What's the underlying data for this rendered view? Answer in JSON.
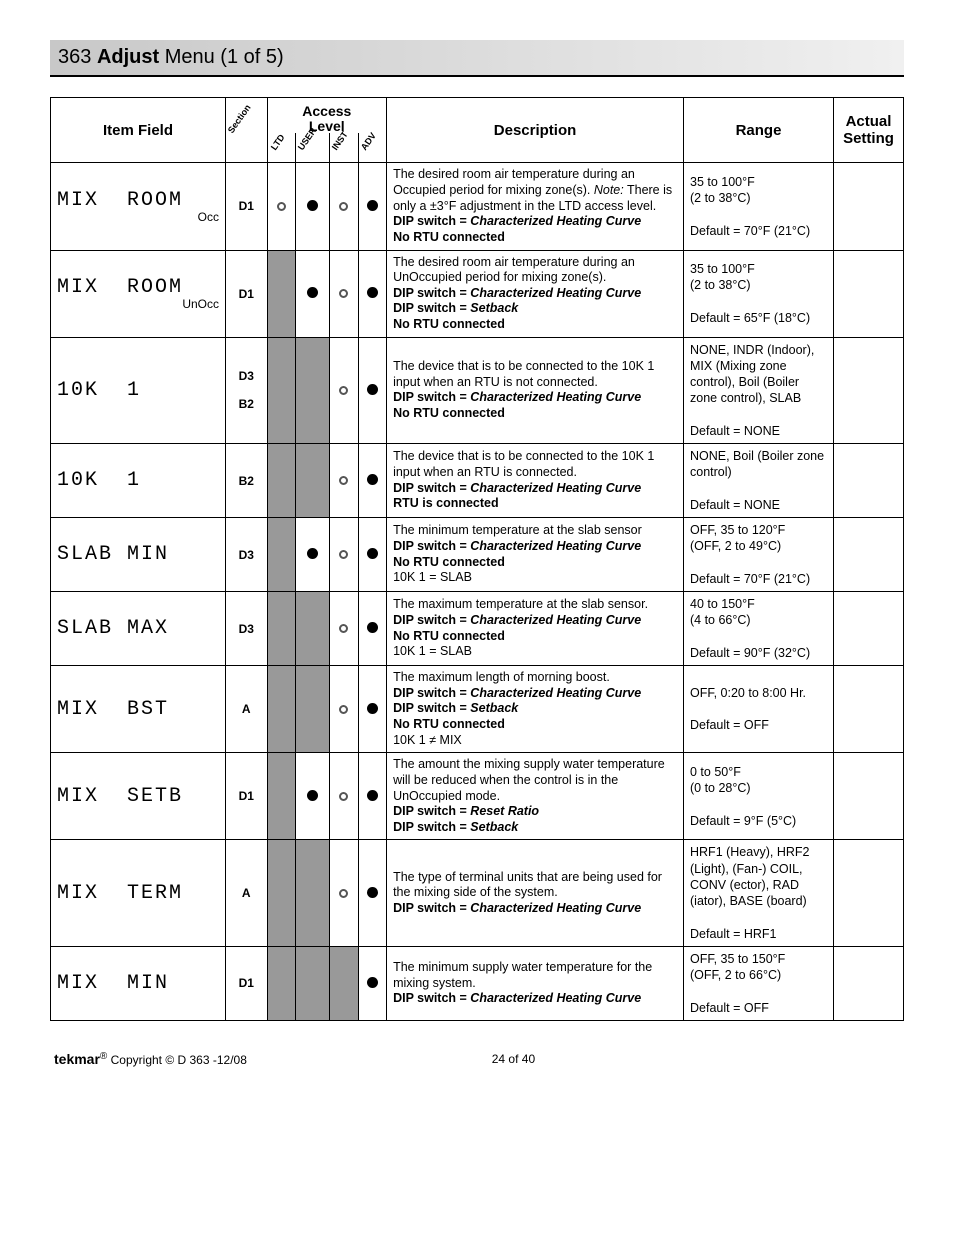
{
  "title": {
    "num": "363",
    "adj": "Adjust",
    "rest": "Menu (1 of 5)"
  },
  "headers": {
    "item": "Item Field",
    "section": "Section",
    "access": "Access\nLevel",
    "access_cols": [
      "LTD",
      "USER",
      "INST",
      "ADV"
    ],
    "desc": "Description",
    "range": "Range",
    "actual": "Actual Setting"
  },
  "rows": [
    {
      "lcd": "MIX  ROOM",
      "sub": "Occ",
      "section": "D1",
      "dots": [
        "hollow",
        "solid",
        "hollow",
        "solid"
      ],
      "desc": [
        {
          "t": "The desired room air temperature during an Occupied period for mixing zone(s). "
        },
        {
          "t": "Note:",
          "cls": "note"
        },
        {
          "t": " There is only a ±3°F adjustment in the LTD access level."
        },
        {
          "br": true
        },
        {
          "t": "DIP switch = ",
          "cls": "bold"
        },
        {
          "t": "Characterized Heating Curve",
          "cls": "ital"
        },
        {
          "br": true
        },
        {
          "t": "No RTU connected",
          "cls": "bold"
        }
      ],
      "range": "35 to 100°F\n(2 to 38°C)\n\nDefault = 70°F (21°C)"
    },
    {
      "lcd": "MIX  ROOM",
      "sub": "UnOcc",
      "section": "D1",
      "dots": [
        "",
        "solid",
        "hollow",
        "solid"
      ],
      "desc": [
        {
          "t": "The desired room air temperature during an UnOccupied period for mixing zone(s)."
        },
        {
          "br": true
        },
        {
          "t": "DIP switch = ",
          "cls": "bold"
        },
        {
          "t": "Characterized Heating Curve",
          "cls": "ital"
        },
        {
          "br": true
        },
        {
          "t": "DIP switch = ",
          "cls": "bold"
        },
        {
          "t": "Setback",
          "cls": "ital"
        },
        {
          "br": true
        },
        {
          "t": "No RTU connected",
          "cls": "bold"
        }
      ],
      "range": "35 to 100°F\n(2 to 38°C)\n\nDefault = 65°F (18°C)"
    },
    {
      "lcd": "10K  1",
      "sub": "",
      "section": "D3\nB2",
      "dots": [
        "",
        "",
        "hollow",
        "solid"
      ],
      "desc": [
        {
          "t": "The device that is to be connected to the 10K 1 input when an RTU is not connected."
        },
        {
          "br": true
        },
        {
          "t": "DIP switch = ",
          "cls": "bold"
        },
        {
          "t": "Characterized Heating Curve",
          "cls": "ital"
        },
        {
          "br": true
        },
        {
          "t": "No RTU connected",
          "cls": "bold"
        }
      ],
      "range": "NONE, INDR (Indoor), MIX (Mixing zone control), Boil (Boiler zone control), SLAB\n\nDefault = NONE"
    },
    {
      "lcd": "10K  1",
      "sub": "",
      "section": "B2",
      "dots": [
        "",
        "",
        "hollow",
        "solid"
      ],
      "desc": [
        {
          "t": "The device that is to be connected to the 10K 1 input when an RTU is connected."
        },
        {
          "br": true
        },
        {
          "t": "DIP switch = ",
          "cls": "bold"
        },
        {
          "t": "Characterized Heating Curve",
          "cls": "ital"
        },
        {
          "br": true
        },
        {
          "t": "RTU is connected",
          "cls": "bold"
        }
      ],
      "range": "NONE, Boil (Boiler zone control)\n\nDefault = NONE"
    },
    {
      "lcd": "SLAB MIN",
      "sub": "",
      "section": "D3",
      "dots": [
        "",
        "solid",
        "hollow",
        "solid"
      ],
      "desc": [
        {
          "t": "The minimum temperature at the slab sensor"
        },
        {
          "br": true
        },
        {
          "t": "DIP switch = ",
          "cls": "bold"
        },
        {
          "t": "Characterized Heating Curve",
          "cls": "ital"
        },
        {
          "br": true
        },
        {
          "t": "No RTU connected",
          "cls": "bold"
        },
        {
          "br": true
        },
        {
          "t": "10K 1 = SLAB"
        }
      ],
      "range": "OFF, 35 to 120°F\n(OFF, 2 to 49°C)\n\nDefault = 70°F (21°C)"
    },
    {
      "lcd": "SLAB MAX",
      "sub": "",
      "section": "D3",
      "dots": [
        "",
        "",
        "hollow",
        "solid"
      ],
      "desc": [
        {
          "t": "The maximum temperature at the slab sensor."
        },
        {
          "br": true
        },
        {
          "t": "DIP switch = ",
          "cls": "bold"
        },
        {
          "t": "Characterized Heating Curve",
          "cls": "ital"
        },
        {
          "br": true
        },
        {
          "t": "No RTU connected",
          "cls": "bold"
        },
        {
          "br": true
        },
        {
          "t": "10K 1 = SLAB"
        }
      ],
      "range": "40 to 150°F\n(4 to 66°C)\n\nDefault = 90°F (32°C)"
    },
    {
      "lcd": "MIX  BST",
      "sub": "",
      "section": "A",
      "dots": [
        "",
        "",
        "hollow",
        "solid"
      ],
      "desc": [
        {
          "t": "The maximum length of morning boost."
        },
        {
          "br": true
        },
        {
          "t": "DIP switch = ",
          "cls": "bold"
        },
        {
          "t": "Characterized Heating Curve",
          "cls": "ital"
        },
        {
          "br": true
        },
        {
          "t": "DIP switch = ",
          "cls": "bold"
        },
        {
          "t": "Setback",
          "cls": "ital"
        },
        {
          "br": true
        },
        {
          "t": "No RTU connected",
          "cls": "bold"
        },
        {
          "br": true
        },
        {
          "t": "10K 1 ≠ MIX"
        }
      ],
      "range": "OFF, 0:20 to 8:00 Hr.\n\nDefault = OFF"
    },
    {
      "lcd": "MIX  SETB",
      "sub": "",
      "section": "D1",
      "dots": [
        "",
        "solid",
        "hollow",
        "solid"
      ],
      "desc": [
        {
          "t": "The amount the mixing supply water temperature will be reduced when the control is in the UnOccupied mode."
        },
        {
          "br": true
        },
        {
          "t": "DIP switch = ",
          "cls": "bold"
        },
        {
          "t": "Reset Ratio",
          "cls": "ital"
        },
        {
          "br": true
        },
        {
          "t": "DIP switch = ",
          "cls": "bold"
        },
        {
          "t": "Setback",
          "cls": "ital"
        }
      ],
      "range": "0 to 50°F\n(0 to 28°C)\n\nDefault = 9°F (5°C)"
    },
    {
      "lcd": "MIX  TERM",
      "sub": "",
      "section": "A",
      "dots": [
        "",
        "",
        "hollow",
        "solid"
      ],
      "desc": [
        {
          "t": "The type of terminal units that are being used for the mixing side of the system."
        },
        {
          "br": true
        },
        {
          "t": "DIP switch = ",
          "cls": "bold"
        },
        {
          "t": "Characterized Heating Curve",
          "cls": "ital"
        }
      ],
      "range": "HRF1 (Heavy), HRF2 (Light), (Fan-) COIL, CONV (ector), RAD (iator), BASE (board)\n\nDefault = HRF1"
    },
    {
      "lcd": "MIX  MIN",
      "sub": "",
      "section": "D1",
      "dots": [
        "",
        "",
        "",
        "solid"
      ],
      "desc": [
        {
          "t": "The minimum supply water temperature for the mixing system."
        },
        {
          "br": true
        },
        {
          "t": "DIP switch = ",
          "cls": "bold"
        },
        {
          "t": "Characterized Heating Curve",
          "cls": "ital"
        }
      ],
      "range": "OFF, 35 to 150°F\n(OFF, 2 to 66°C)\n\nDefault = OFF"
    }
  ],
  "footer": {
    "brand": "tekmar",
    "copyright": "Copyright © D 363 -12/08",
    "page": "24 of 40"
  }
}
